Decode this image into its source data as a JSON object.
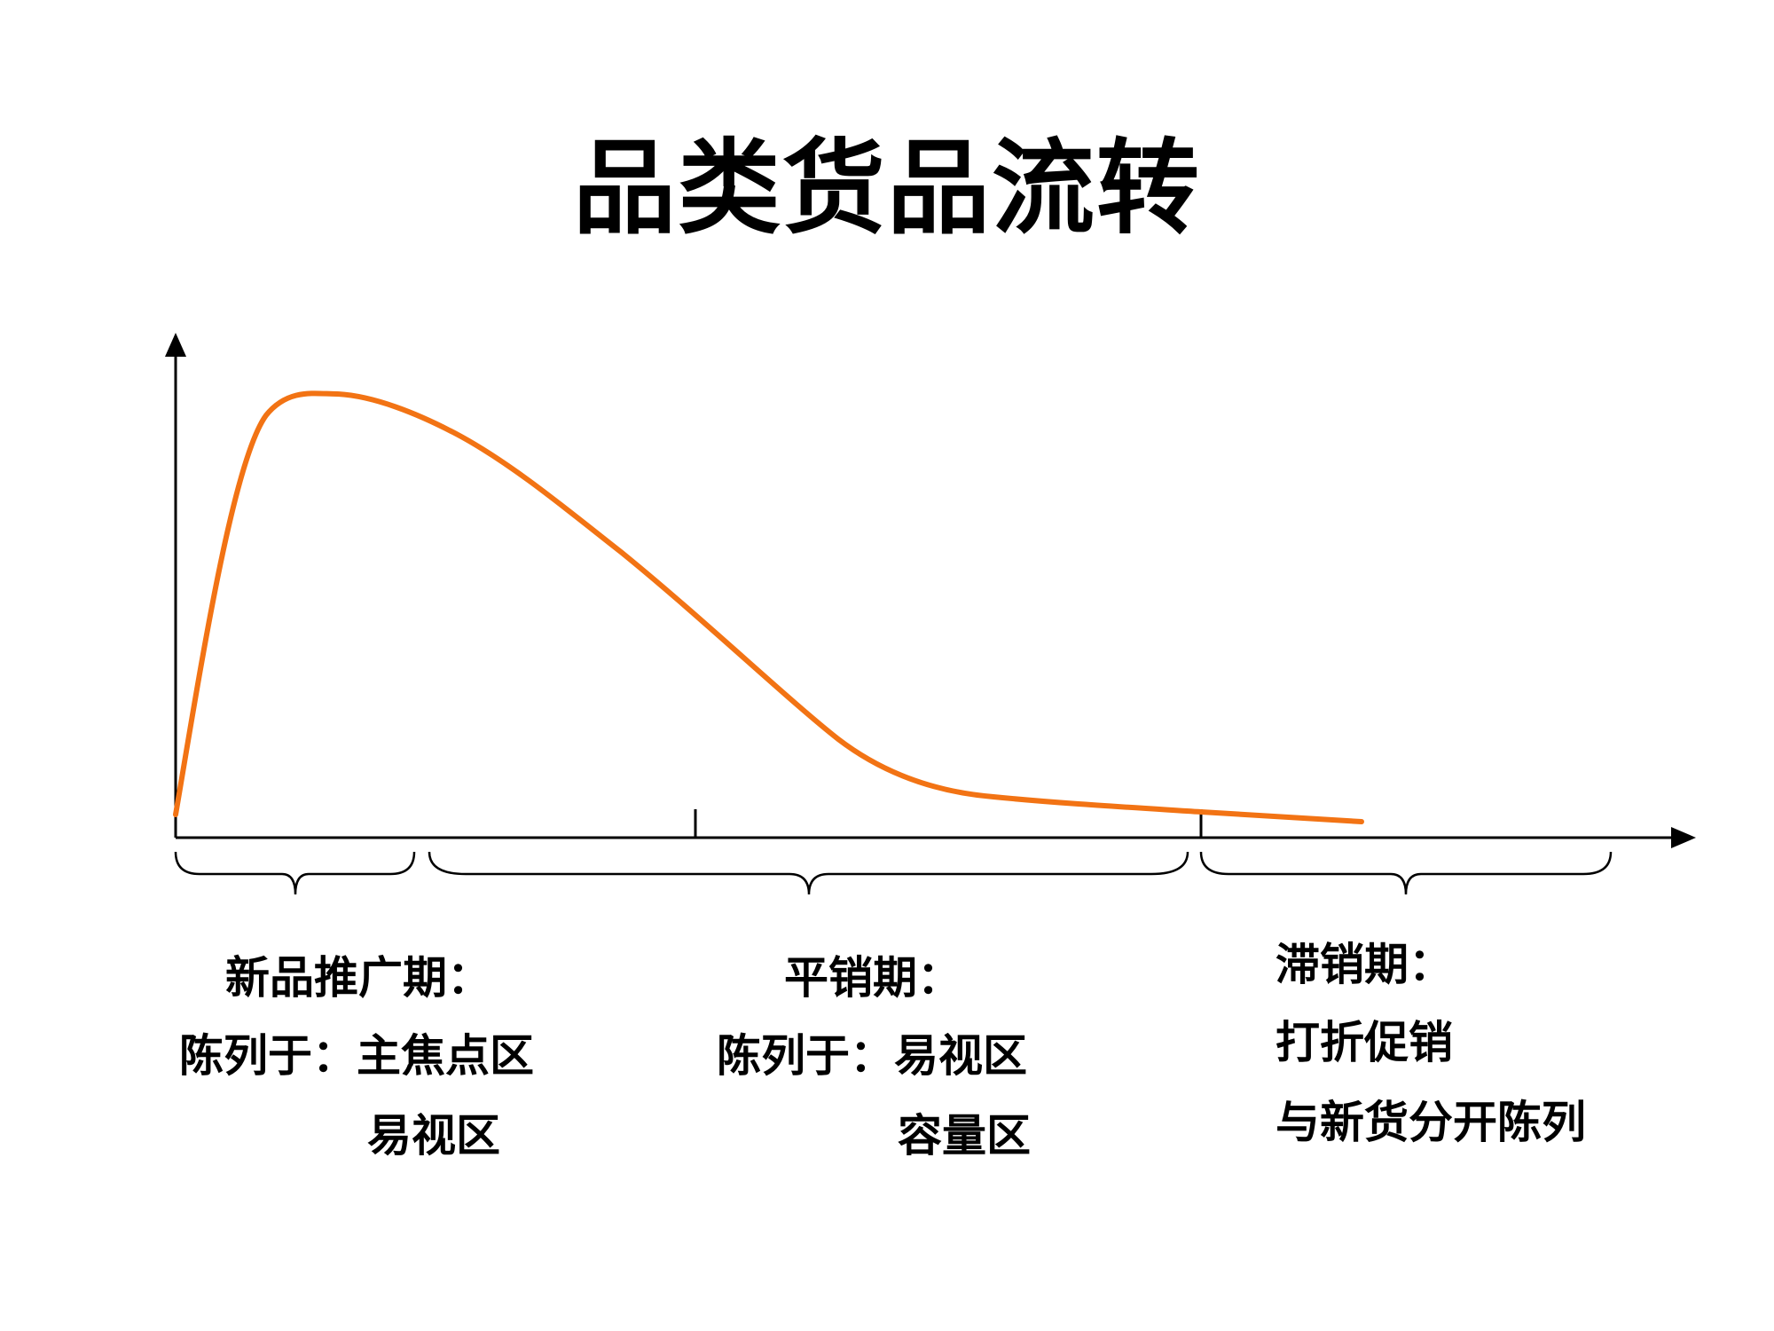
{
  "title": "品类货品流转",
  "colors": {
    "curve": "#F27314",
    "axis": "#000000",
    "background": "#FFFFFF"
  },
  "phases": {
    "p1": {
      "heading": "新品推广期：",
      "line1": "陈列于：主焦点区",
      "line2": "易视区"
    },
    "p2": {
      "heading": "平销期：",
      "line1": "陈列于：易视区",
      "line2": "容量区"
    },
    "p3": {
      "heading": "滞销期：",
      "line1": "打折促销",
      "line2": "与新货分开陈列"
    }
  }
}
